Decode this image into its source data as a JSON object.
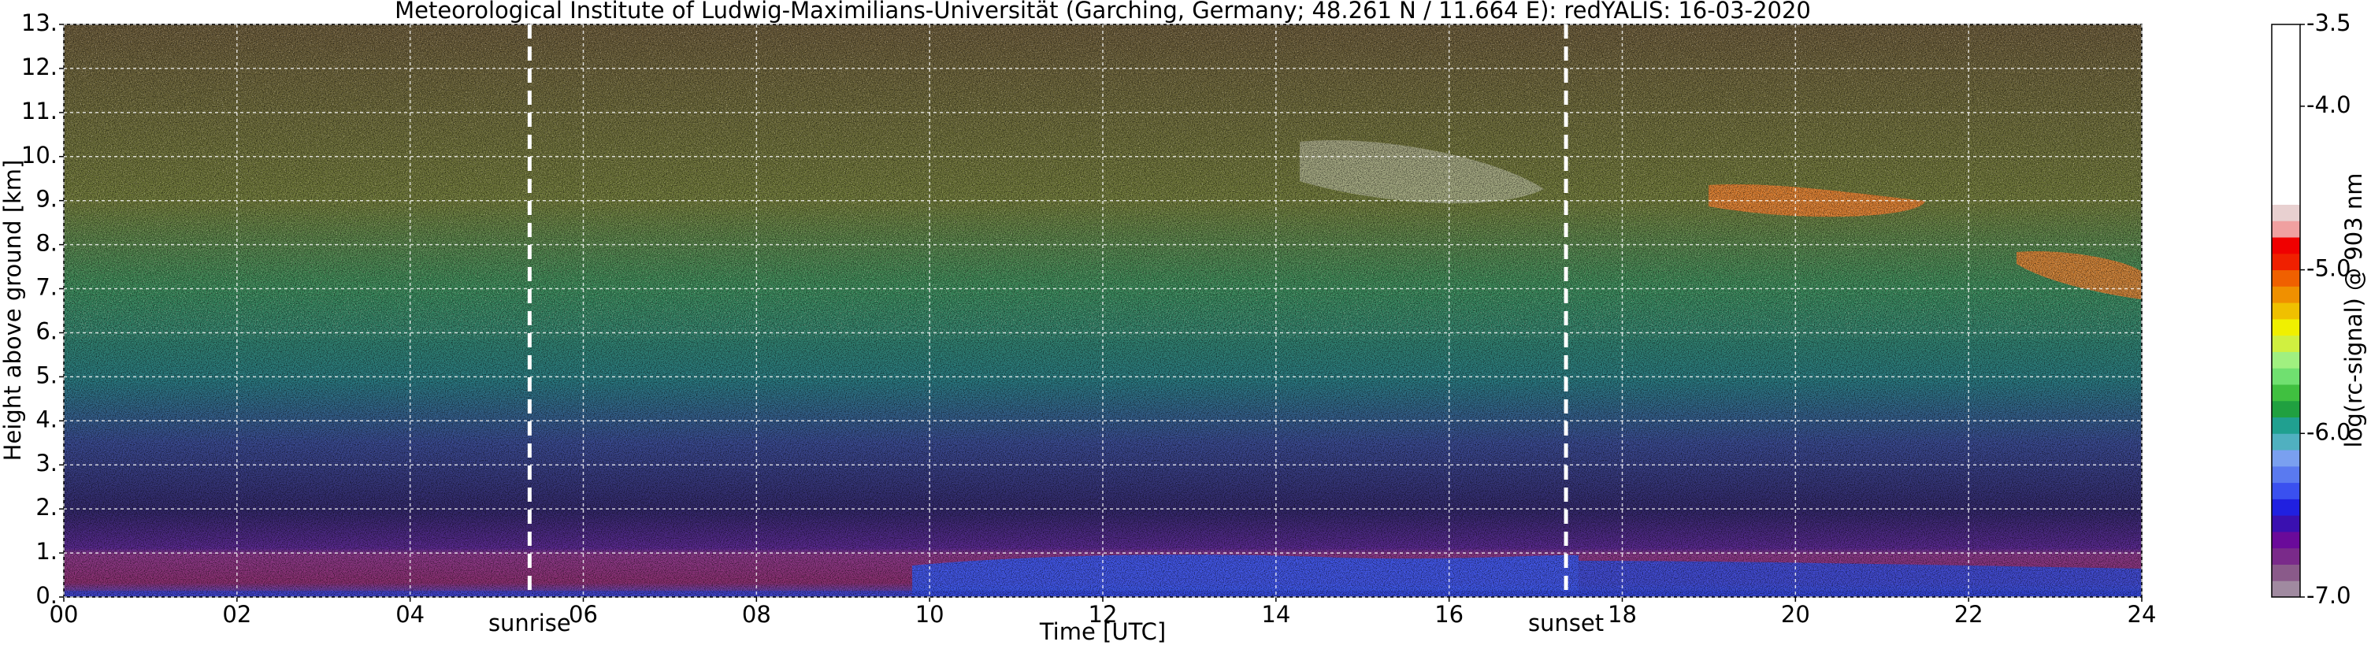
{
  "chart_data": {
    "type": "heatmap",
    "title": "Meteorological Institute of Ludwig-Maximilians-Universität (Garching, Germany; 48.261 N / 11.664 E):    redYALIS: 16-03-2020",
    "x_label": "Time [UTC]",
    "y_label": "Height above ground [km]",
    "xlim": [
      0,
      24
    ],
    "xticks": [
      {
        "value": 0,
        "label": "00"
      },
      {
        "value": 2,
        "label": "02"
      },
      {
        "value": 4,
        "label": "04"
      },
      {
        "value": 6,
        "label": "06"
      },
      {
        "value": 8,
        "label": "08"
      },
      10,
      12,
      14,
      16,
      18,
      20,
      22,
      24
    ],
    "ylim": [
      0,
      13
    ],
    "yticks": [
      {
        "value": 0,
        "label": "0."
      },
      {
        "value": 1,
        "label": "1."
      },
      {
        "value": 2,
        "label": "2."
      },
      {
        "value": 3,
        "label": "3."
      },
      {
        "value": 4,
        "label": "4."
      },
      {
        "value": 5,
        "label": "5."
      },
      {
        "value": 6,
        "label": "6."
      },
      {
        "value": 7,
        "label": "7."
      },
      {
        "value": 8,
        "label": "8."
      },
      {
        "value": 9,
        "label": "9."
      },
      {
        "value": 10,
        "label": "10."
      },
      {
        "value": 11,
        "label": "11."
      },
      {
        "value": 12,
        "label": "12."
      },
      {
        "value": 13,
        "label": "13."
      }
    ],
    "grid": true,
    "annotations": [
      {
        "text": "sunrise",
        "x": 5.38
      },
      {
        "text": "sunset",
        "x": 17.35
      }
    ],
    "colorbar": {
      "label": "log(rc-signal) @ 903 nm",
      "lim": [
        -7.0,
        -3.5
      ],
      "ticks": [
        {
          "value": -7.0,
          "label": "-7.0"
        },
        {
          "value": -6.0,
          "label": "-6.0"
        },
        {
          "value": -5.0,
          "label": "-5.0"
        },
        {
          "value": -4.0,
          "label": "-4.0"
        },
        {
          "value": -3.5,
          "label": "-3.5"
        }
      ],
      "colors": [
        "#a08aa0",
        "#8a5a8a",
        "#7a2a8a",
        "#6a0a9a",
        "#3a10b0",
        "#2020e0",
        "#3a50f0",
        "#5a7af0",
        "#7aa0f0",
        "#50b0c0",
        "#20a090",
        "#20a040",
        "#40c040",
        "#70e070",
        "#a0f080",
        "#d0f040",
        "#f0f000",
        "#f0c000",
        "#f09000",
        "#f06000",
        "#f02000",
        "#f00000",
        "#f0a0a0",
        "#e8d0d0",
        "#ffffff",
        "#ffffff",
        "#ffffff",
        "#ffffff",
        "#ffffff",
        "#ffffff",
        "#ffffff",
        "#ffffff",
        "#ffffff",
        "#ffffff",
        "#ffffff"
      ]
    }
  }
}
